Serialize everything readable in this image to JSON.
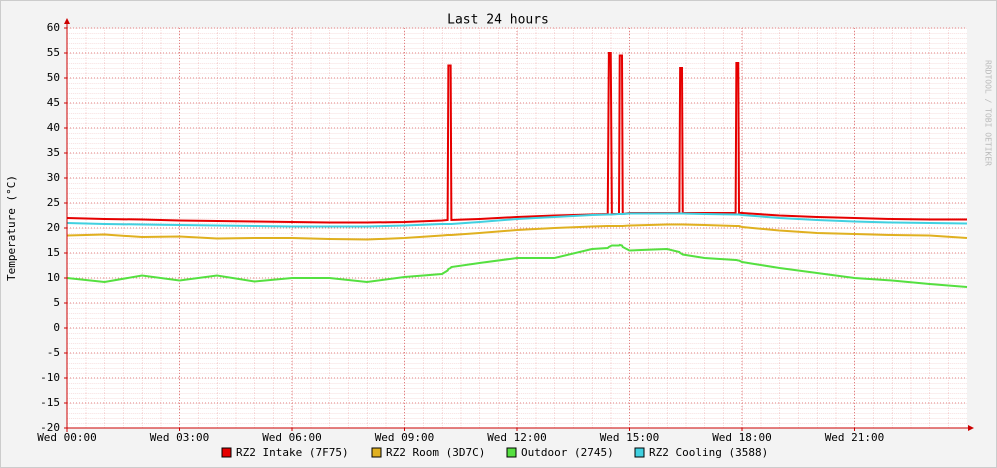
{
  "chart_data": {
    "type": "line",
    "title": "Last 24 hours",
    "y_label": "Temperature (°C)",
    "watermark": "RRDTOOL / TOBI OETIKER",
    "x": [
      0,
      1,
      2,
      3,
      4,
      5,
      6,
      7,
      8,
      9,
      10,
      10.15,
      10.17,
      10.23,
      10.25,
      11,
      12,
      13,
      14,
      14.42,
      14.45,
      14.5,
      14.53,
      14.72,
      14.74,
      14.8,
      14.82,
      15,
      16,
      16.33,
      16.35,
      16.4,
      16.42,
      17,
      17.83,
      17.85,
      17.9,
      17.92,
      18,
      19,
      20,
      21,
      22,
      23,
      24
    ],
    "xlim": [
      0,
      24
    ],
    "xticks": [
      {
        "value": 0,
        "label": "Wed 00:00"
      },
      {
        "value": 3,
        "label": "Wed 03:00"
      },
      {
        "value": 6,
        "label": "Wed 06:00"
      },
      {
        "value": 9,
        "label": "Wed 09:00"
      },
      {
        "value": 12,
        "label": "Wed 12:00"
      },
      {
        "value": 15,
        "label": "Wed 15:00"
      },
      {
        "value": 18,
        "label": "Wed 18:00"
      },
      {
        "value": 21,
        "label": "Wed 21:00"
      }
    ],
    "ylim": [
      -20,
      60
    ],
    "yticks": [
      -20,
      -15,
      -10,
      -5,
      0,
      5,
      10,
      15,
      20,
      25,
      30,
      35,
      40,
      45,
      50,
      55,
      60
    ],
    "grid": true,
    "series": [
      {
        "name": "RZ2 Intake (7F75)",
        "color": "#e60000",
        "values": [
          22,
          21.8,
          21.7,
          21.5,
          21.4,
          21.3,
          21.2,
          21.1,
          21.1,
          21.2,
          21.5,
          21.6,
          52.5,
          52.5,
          21.6,
          21.8,
          22.2,
          22.5,
          22.7,
          22.8,
          55,
          55,
          22.8,
          22.8,
          54.5,
          54.5,
          22.8,
          23,
          23,
          23,
          52,
          52,
          23,
          23,
          23,
          53,
          53,
          23,
          23,
          22.5,
          22.2,
          22,
          21.8,
          21.7,
          21.7
        ]
      },
      {
        "name": "RZ2 Room (3D7C)",
        "color": "#e0b020",
        "values": [
          18.5,
          18.7,
          18.2,
          18.3,
          17.9,
          18,
          18,
          17.8,
          17.7,
          18,
          18.5,
          18.6,
          18.6,
          18.6,
          18.6,
          19,
          19.6,
          20,
          20.3,
          20.4,
          20.4,
          20.4,
          20.4,
          20.4,
          20.4,
          20.4,
          20.4,
          20.5,
          20.7,
          20.7,
          20.7,
          20.7,
          20.7,
          20.6,
          20.4,
          20.4,
          20.4,
          20.4,
          20.2,
          19.5,
          19,
          18.8,
          18.6,
          18.5,
          18
        ]
      },
      {
        "name": "Outdoor (2745)",
        "color": "#55e040",
        "values": [
          10,
          9.2,
          10.5,
          9.5,
          10.5,
          9.3,
          10,
          10,
          9.2,
          10.2,
          10.8,
          11.5,
          11.8,
          12,
          12.2,
          13,
          14,
          14,
          15.8,
          16,
          16.2,
          16.4,
          16.5,
          16.5,
          16.6,
          16.5,
          16.2,
          15.5,
          15.8,
          15.2,
          15,
          14.8,
          14.7,
          14,
          13.6,
          13.6,
          13.5,
          13.5,
          13.2,
          12,
          11,
          10,
          9.5,
          8.8,
          8.2
        ]
      },
      {
        "name": "RZ2 Cooling (3588)",
        "color": "#40d0e0",
        "values": [
          21,
          20.8,
          20.7,
          20.6,
          20.5,
          20.4,
          20.3,
          20.3,
          20.3,
          20.5,
          20.8,
          20.8,
          20.8,
          20.8,
          20.8,
          21.2,
          21.8,
          22.2,
          22.6,
          22.7,
          22.7,
          22.7,
          22.7,
          22.8,
          22.8,
          22.8,
          22.8,
          22.9,
          22.9,
          22.9,
          22.9,
          22.9,
          22.9,
          22.8,
          22.7,
          22.7,
          22.7,
          22.7,
          22.6,
          22,
          21.6,
          21.3,
          21.1,
          21,
          20.9
        ]
      }
    ]
  }
}
